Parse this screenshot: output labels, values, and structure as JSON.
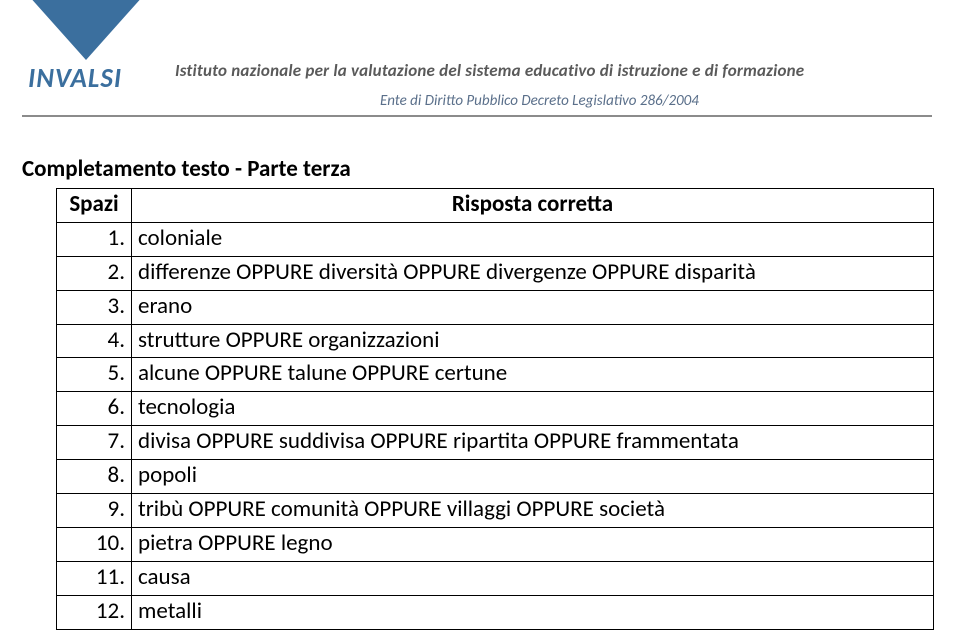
{
  "header": {
    "logo_text": "INVALSI",
    "institute_line": "Istituto nazionale per la valutazione del sistema educativo di istruzione e di formazione",
    "subline": "Ente di Diritto Pubblico Decreto Legislativo 286/2004"
  },
  "section_title": "Completamento testo - Parte terza",
  "table": {
    "col1_header": "Spazi",
    "col2_header": "Risposta corretta",
    "rows": [
      {
        "num": "1.",
        "text": "coloniale"
      },
      {
        "num": "2.",
        "text": "differenze OPPURE diversità OPPURE divergenze OPPURE disparità"
      },
      {
        "num": "3.",
        "text": "erano"
      },
      {
        "num": "4.",
        "text": "strutture OPPURE organizzazioni"
      },
      {
        "num": "5.",
        "text": "alcune OPPURE talune OPPURE certune"
      },
      {
        "num": "6.",
        "text": "tecnologia"
      },
      {
        "num": "7.",
        "text": "divisa OPPURE suddivisa OPPURE ripartita OPPURE frammentata"
      },
      {
        "num": "8.",
        "text": "popoli"
      },
      {
        "num": "9.",
        "text": "tribù OPPURE comunità OPPURE villaggi OPPURE società"
      },
      {
        "num": "10.",
        "text": "pietra OPPURE legno"
      },
      {
        "num": "11.",
        "text": "causa"
      },
      {
        "num": "12.",
        "text": "metalli"
      }
    ]
  }
}
